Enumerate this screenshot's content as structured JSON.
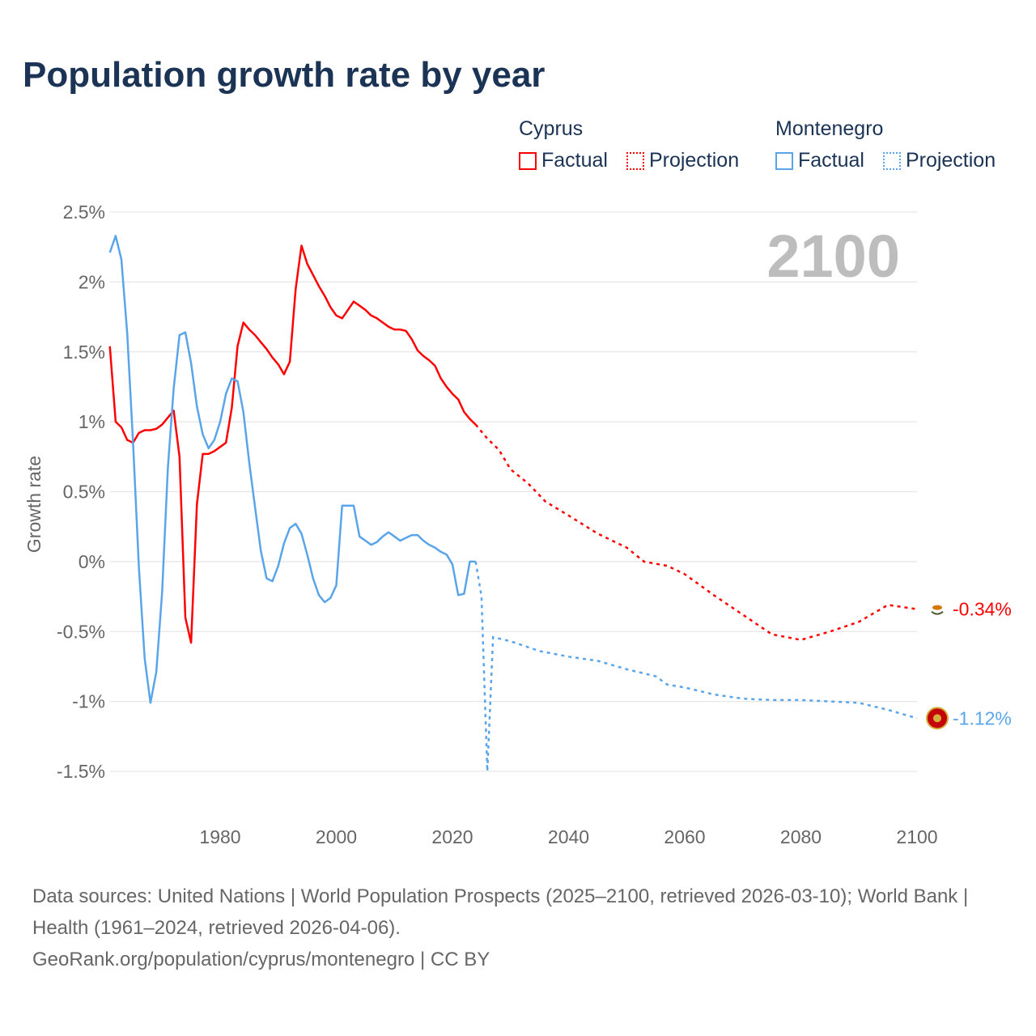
{
  "chart_data": {
    "type": "line",
    "title": "Population growth rate by year",
    "ylabel": "Growth rate",
    "xlabel": "",
    "xlim": [
      1961,
      2100
    ],
    "ylim": [
      -1.5,
      2.5
    ],
    "x_ticks": [
      "1980",
      "2000",
      "2020",
      "2040",
      "2060",
      "2080",
      "2100"
    ],
    "x_tick_values": [
      1980,
      2000,
      2020,
      2040,
      2060,
      2080,
      2100
    ],
    "y_ticks": [
      "2.5%",
      "2%",
      "1.5%",
      "1%",
      "0.5%",
      "0%",
      "-0.5%",
      "-1%",
      "-1.5%"
    ],
    "y_tick_values": [
      2.5,
      2,
      1.5,
      1,
      0.5,
      0,
      -0.5,
      -1,
      -1.5
    ],
    "grid": true,
    "legend_position": "top-right",
    "current_year_label": "2100",
    "series": [
      {
        "name": "Cyprus",
        "color": "#ff0000",
        "end_label": "-0.34%",
        "factual": {
          "x": [
            1961,
            1962,
            1963,
            1964,
            1965,
            1966,
            1967,
            1968,
            1969,
            1970,
            1971,
            1972,
            1973,
            1974,
            1975,
            1976,
            1977,
            1978,
            1979,
            1980,
            1981,
            1982,
            1983,
            1984,
            1985,
            1986,
            1987,
            1988,
            1989,
            1990,
            1991,
            1992,
            1993,
            1994,
            1995,
            1996,
            1997,
            1998,
            1999,
            2000,
            2001,
            2002,
            2003,
            2004,
            2005,
            2006,
            2007,
            2008,
            2009,
            2010,
            2011,
            2012,
            2013,
            2014,
            2015,
            2016,
            2017,
            2018,
            2019,
            2020,
            2021,
            2022,
            2023,
            2024
          ],
          "y": [
            1.54,
            1.0,
            0.96,
            0.87,
            0.85,
            0.92,
            0.94,
            0.94,
            0.95,
            0.98,
            1.03,
            1.08,
            0.75,
            -0.4,
            -0.58,
            0.41,
            0.77,
            0.77,
            0.79,
            0.82,
            0.85,
            1.1,
            1.54,
            1.71,
            1.66,
            1.62,
            1.57,
            1.52,
            1.46,
            1.41,
            1.34,
            1.43,
            1.95,
            2.26,
            2.13,
            2.05,
            1.97,
            1.9,
            1.82,
            1.76,
            1.74,
            1.8,
            1.86,
            1.83,
            1.8,
            1.76,
            1.74,
            1.71,
            1.68,
            1.66,
            1.66,
            1.65,
            1.59,
            1.51,
            1.47,
            1.44,
            1.4,
            1.31,
            1.25,
            1.2,
            1.16,
            1.07,
            1.02,
            0.98
          ]
        },
        "projection": {
          "x": [
            2024,
            2026,
            2028,
            2030,
            2033,
            2036,
            2040,
            2045,
            2050,
            2053,
            2057,
            2060,
            2065,
            2070,
            2075,
            2080,
            2085,
            2090,
            2095,
            2100
          ],
          "y": [
            0.98,
            0.88,
            0.8,
            0.66,
            0.56,
            0.43,
            0.33,
            0.2,
            0.1,
            0.0,
            -0.03,
            -0.09,
            -0.24,
            -0.38,
            -0.52,
            -0.56,
            -0.5,
            -0.43,
            -0.31,
            -0.34
          ]
        }
      },
      {
        "name": "Montenegro",
        "color": "#5aa5ea",
        "end_label": "-1.12%",
        "factual": {
          "x": [
            1961,
            1962,
            1963,
            1964,
            1965,
            1966,
            1967,
            1968,
            1969,
            1970,
            1971,
            1972,
            1973,
            1974,
            1975,
            1976,
            1977,
            1978,
            1979,
            1980,
            1981,
            1982,
            1983,
            1984,
            1985,
            1986,
            1987,
            1988,
            1989,
            1990,
            1991,
            1992,
            1993,
            1994,
            1995,
            1996,
            1997,
            1998,
            1999,
            2000,
            2001,
            2002,
            2003,
            2004,
            2005,
            2006,
            2007,
            2008,
            2009,
            2010,
            2011,
            2012,
            2013,
            2014,
            2015,
            2016,
            2017,
            2018,
            2019,
            2020,
            2021,
            2022,
            2023,
            2024
          ],
          "y": [
            2.21,
            2.33,
            2.16,
            1.63,
            0.85,
            -0.04,
            -0.69,
            -1.01,
            -0.79,
            -0.22,
            0.67,
            1.24,
            1.62,
            1.64,
            1.42,
            1.11,
            0.91,
            0.81,
            0.87,
            1.0,
            1.2,
            1.31,
            1.29,
            1.07,
            0.71,
            0.39,
            0.08,
            -0.12,
            -0.14,
            -0.03,
            0.13,
            0.24,
            0.27,
            0.2,
            0.05,
            -0.12,
            -0.24,
            -0.29,
            -0.26,
            -0.17,
            0.4,
            0.4,
            0.4,
            0.18,
            0.15,
            0.12,
            0.14,
            0.18,
            0.21,
            0.18,
            0.15,
            0.17,
            0.19,
            0.19,
            0.15,
            0.12,
            0.1,
            0.07,
            0.05,
            -0.02,
            -0.24,
            -0.23,
            0.0,
            0.0
          ]
        },
        "projection": {
          "x": [
            2024,
            2025,
            2026,
            2027,
            2030,
            2035,
            2040,
            2045,
            2050,
            2055,
            2057,
            2060,
            2065,
            2070,
            2075,
            2080,
            2085,
            2090,
            2095,
            2100
          ],
          "y": [
            0.0,
            -0.25,
            -1.5,
            -0.54,
            -0.57,
            -0.64,
            -0.68,
            -0.71,
            -0.77,
            -0.82,
            -0.88,
            -0.9,
            -0.95,
            -0.98,
            -0.99,
            -0.99,
            -1.0,
            -1.01,
            -1.06,
            -1.12
          ]
        }
      }
    ]
  },
  "legend": {
    "groups": [
      {
        "name": "Cyprus",
        "factual": "Factual",
        "projection": "Projection"
      },
      {
        "name": "Montenegro",
        "factual": "Factual",
        "projection": "Projection"
      }
    ]
  },
  "footer": {
    "sources": "Data sources: United Nations | World Population Prospects (2025–2100, retrieved 2026-03-10); World Bank | Health (1961–2024, retrieved 2026-04-06).",
    "credit": "GeoRank.org/population/cyprus/montenegro | CC BY"
  }
}
